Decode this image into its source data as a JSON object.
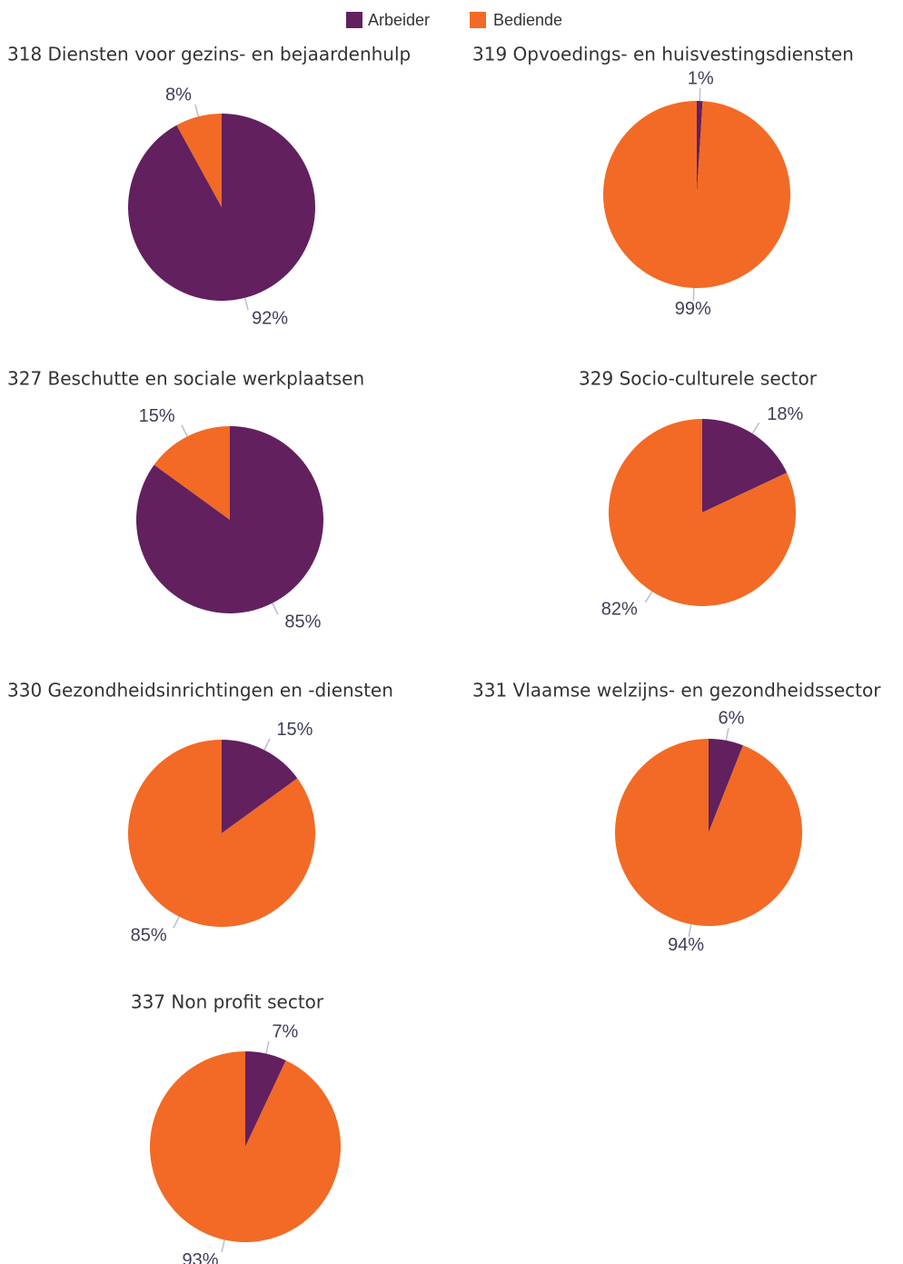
{
  "legend": {
    "items": [
      {
        "name": "Arbeider",
        "color": "#62205f"
      },
      {
        "name": "Bediende",
        "color": "#f26a25"
      }
    ]
  },
  "chart_data": [
    {
      "type": "pie",
      "title": "318 Diensten voor gezins- en bejaardenhulp",
      "values": [
        92,
        8
      ],
      "value_labels": [
        "92%",
        "8%"
      ]
    },
    {
      "type": "pie",
      "title": "319 Opvoedings- en huisvestingsdiensten",
      "values": [
        1,
        99
      ],
      "value_labels": [
        "1%",
        "99%"
      ]
    },
    {
      "type": "pie",
      "title": "327 Beschutte en sociale werkplaatsen",
      "values": [
        85,
        15
      ],
      "value_labels": [
        "85%",
        "15%"
      ]
    },
    {
      "type": "pie",
      "title": "329 Socio-culturele sector",
      "values": [
        18,
        82
      ],
      "value_labels": [
        "18%",
        "82%"
      ]
    },
    {
      "type": "pie",
      "title": "330 Gezondheidsinrichtingen en -diensten",
      "values": [
        15,
        85
      ],
      "value_labels": [
        "15%",
        "85%"
      ]
    },
    {
      "type": "pie",
      "title": "331 Vlaamse welzijns- en gezondheidssector",
      "values": [
        6,
        94
      ],
      "value_labels": [
        "6%",
        "94%"
      ]
    },
    {
      "type": "pie",
      "title": "337 Non profit sector",
      "values": [
        7,
        93
      ],
      "value_labels": [
        "7%",
        "93%"
      ]
    }
  ]
}
